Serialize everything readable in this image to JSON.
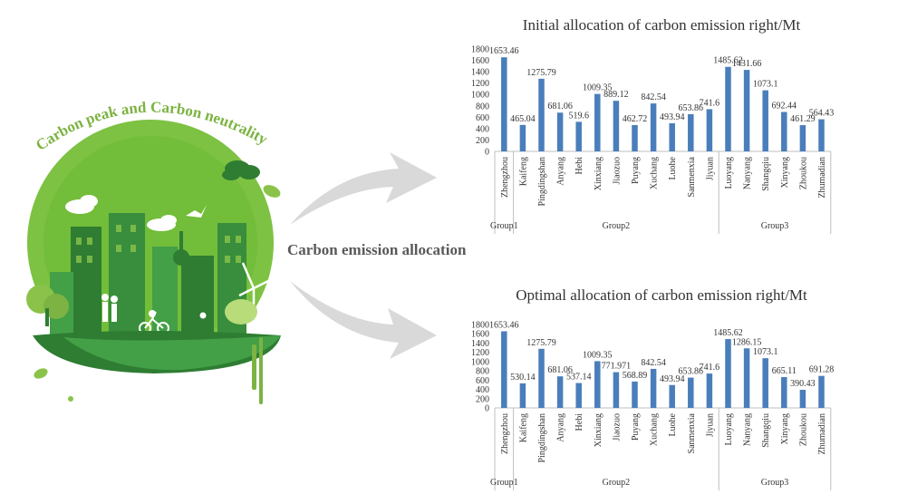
{
  "illustration": {
    "arc_text": "Carbon peak and Carbon neutrality",
    "flow_label": "Carbon emission allocation",
    "colors": {
      "light_green": "#8BC34A",
      "mid_green": "#43A047",
      "dark_green": "#2E7D32",
      "pale_green": "#B8DC7A",
      "arrow_gray": "#D9D9D9"
    }
  },
  "chart_data": [
    {
      "type": "bar",
      "title": "Initial allocation of carbon emission right/Mt",
      "categories": [
        "Zhengzhou",
        "Kaifeng",
        "Pingdingshan",
        "Anyang",
        "Hebi",
        "Xinxiang",
        "Jiaozuo",
        "Puyang",
        "Xuchang",
        "Luohe",
        "Sanmenxia",
        "Jiyuan",
        "Luoyang",
        "Nanyang",
        "Shangqiu",
        "Xinyang",
        "Zhoukou",
        "Zhumadian"
      ],
      "values": [
        1653.46,
        465.04,
        1275.79,
        681.06,
        519.6,
        1009.35,
        889.12,
        462.72,
        842.54,
        493.94,
        653.86,
        741.6,
        1485.62,
        1431.66,
        1073.1,
        692.44,
        461.29,
        564.43
      ],
      "value_labels": [
        "1653.46",
        "465.04",
        "1275.79",
        "681.06",
        "519.6",
        "1009.35",
        "889.12",
        "462.72",
        "842.54",
        "493.94",
        "653.86",
        "741.6",
        "1485.62",
        "1431.66",
        "1073.1",
        "692.44",
        "461.29",
        "564.43"
      ],
      "ylim": [
        0,
        1800
      ],
      "yticks": [
        "0",
        "200",
        "400",
        "600",
        "800",
        "1000",
        "1200",
        "1400",
        "1600",
        "1800"
      ],
      "groups": [
        {
          "name": "Group1",
          "start": 0,
          "end": 0
        },
        {
          "name": "Group2",
          "start": 1,
          "end": 11
        },
        {
          "name": "Group3",
          "start": 12,
          "end": 17
        }
      ],
      "bar_color": "#4A7EBB"
    },
    {
      "type": "bar",
      "title": "Optimal allocation of carbon emission right/Mt",
      "categories": [
        "Zhengzhou",
        "Kaifeng",
        "Pingdingshan",
        "Anyang",
        "Hebi",
        "Xinxiang",
        "Jiaozuo",
        "Puyang",
        "Xuchang",
        "Luohe",
        "Sanmenxia",
        "Jiyuan",
        "Luoyang",
        "Nanyang",
        "Shangqiu",
        "Xinyang",
        "Zhoukou",
        "Zhumadian"
      ],
      "values": [
        1653.46,
        530.14,
        1275.79,
        681.06,
        537.14,
        1009.35,
        771.971,
        568.89,
        842.54,
        493.94,
        653.86,
        741.6,
        1485.62,
        1286.15,
        1073.1,
        665.11,
        390.43,
        691.28
      ],
      "value_labels": [
        "1653.46",
        "530.14",
        "1275.79",
        "681.06",
        "537.14",
        "1009.35",
        "771.971",
        "568.89",
        "842.54",
        "493.94",
        "653.86",
        "741.6",
        "1485.62",
        "1286.15",
        "1073.1",
        "665.11",
        "390.43",
        "691.28"
      ],
      "ylim": [
        0,
        1800
      ],
      "yticks": [
        "0",
        "200",
        "400",
        "600",
        "800",
        "1000",
        "1200",
        "1400",
        "1600",
        "1800"
      ],
      "groups": [
        {
          "name": "Group1",
          "start": 0,
          "end": 0
        },
        {
          "name": "Group2",
          "start": 1,
          "end": 11
        },
        {
          "name": "Group3",
          "start": 12,
          "end": 17
        }
      ],
      "bar_color": "#4A7EBB"
    }
  ]
}
